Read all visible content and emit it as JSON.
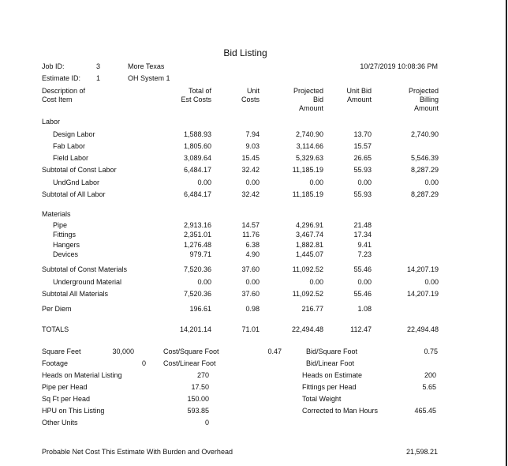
{
  "title": "Bid Listing",
  "job": {
    "label": "Job ID:",
    "id": "3",
    "name": "More Texas"
  },
  "estimate": {
    "label": "Estimate ID:",
    "id": "1",
    "name": "OH System 1"
  },
  "timestamp": "10/27/2019 10:08:36 PM",
  "columns": [
    [
      "Description of",
      "Cost Item"
    ],
    [
      "Total of",
      "Est Costs"
    ],
    [
      "Unit",
      "Costs"
    ],
    [
      "Projected",
      "Bid",
      "Amount"
    ],
    [
      "Unit Bid",
      "Amount"
    ],
    [
      "Projected",
      "Billing",
      "Amount"
    ]
  ],
  "rows": [
    {
      "label": "Labor",
      "indent": false,
      "values": [
        "",
        "",
        "",
        "",
        ""
      ]
    },
    {
      "label": "Design Labor",
      "indent": true,
      "values": [
        "1,588.93",
        "7.94",
        "2,740.90",
        "13.70",
        "2,740.90"
      ]
    },
    {
      "label": "Fab Labor",
      "indent": true,
      "values": [
        "1,805.60",
        "9.03",
        "3,114.66",
        "15.57",
        ""
      ]
    },
    {
      "label": "Field Labor",
      "indent": true,
      "values": [
        "3,089.64",
        "15.45",
        "5,329.63",
        "26.65",
        "5,546.39"
      ]
    },
    {
      "label": "Subtotal of Const Labor",
      "indent": false,
      "values": [
        "6,484.17",
        "32.42",
        "11,185.19",
        "55.93",
        "8,287.29"
      ]
    },
    {
      "label": "UndGnd Labor",
      "indent": true,
      "values": [
        "0.00",
        "0.00",
        "0.00",
        "0.00",
        "0.00"
      ]
    },
    {
      "label": "Subtotal of All Labor",
      "indent": false,
      "values": [
        "6,484.17",
        "32.42",
        "11,185.19",
        "55.93",
        "8,287.29"
      ]
    },
    {
      "label": "Materials",
      "indent": false,
      "values": [
        "",
        "",
        "",
        "",
        ""
      ]
    },
    {
      "label": "Pipe",
      "indent": true,
      "values": [
        "2,913.16",
        "14.57",
        "4,296.91",
        "21.48",
        ""
      ]
    },
    {
      "label": "Fittings",
      "indent": true,
      "values": [
        "2,351.01",
        "11.76",
        "3,467.74",
        "17.34",
        ""
      ]
    },
    {
      "label": "Hangers",
      "indent": true,
      "values": [
        "1,276.48",
        "6.38",
        "1,882.81",
        "9.41",
        ""
      ]
    },
    {
      "label": "Devices",
      "indent": true,
      "values": [
        "979.71",
        "4.90",
        "1,445.07",
        "7.23",
        ""
      ]
    },
    {
      "label": "Subtotal of Const Materials",
      "indent": false,
      "values": [
        "7,520.36",
        "37.60",
        "11,092.52",
        "55.46",
        "14,207.19"
      ]
    },
    {
      "label": "Underground Material",
      "indent": true,
      "values": [
        "0.00",
        "0.00",
        "0.00",
        "0.00",
        "0.00"
      ]
    },
    {
      "label": "Subtotal All Materials",
      "indent": false,
      "values": [
        "7,520.36",
        "37.60",
        "11,092.52",
        "55.46",
        "14,207.19"
      ]
    },
    {
      "label": "Per Diem",
      "indent": false,
      "values": [
        "196.61",
        "0.98",
        "216.77",
        "1.08",
        ""
      ]
    },
    {
      "label": "TOTALS",
      "indent": false,
      "values": [
        "14,201.14",
        "71.01",
        "22,494.48",
        "112.47",
        "22,494.48"
      ]
    }
  ],
  "stats": {
    "square_feet": {
      "label": "Square Feet",
      "value": "30,000"
    },
    "footage": {
      "label": "Footage",
      "value": "0"
    },
    "cost_sq_ft": {
      "label": "Cost/Square Foot",
      "value": "0.47"
    },
    "cost_lin_ft": {
      "label": "Cost/Linear Foot",
      "value": ""
    },
    "bid_sq_ft": {
      "label": "Bid/Square Foot",
      "value": "0.75"
    },
    "bid_lin_ft": {
      "label": "Bid/Linear Foot",
      "value": ""
    },
    "left": [
      {
        "label": "Heads on Material Listing",
        "value": "270"
      },
      {
        "label": "Pipe per Head",
        "value": "17.50"
      },
      {
        "label": "Sq Ft per Head",
        "value": "150.00"
      },
      {
        "label": "HPU on This Listing",
        "value": "593.85"
      },
      {
        "label": "Other Units",
        "value": "0"
      }
    ],
    "right": [
      {
        "label": "Heads on Estimate",
        "value": "200"
      },
      {
        "label": "Fittings per Head",
        "value": "5.65"
      },
      {
        "label": "Total Weight",
        "value": ""
      },
      {
        "label": "Corrected to Man Hours",
        "value": "465.45"
      }
    ]
  },
  "probable": {
    "label": "Probable Net Cost This Estimate With Burden and Overhead",
    "value": "21,598.21"
  }
}
